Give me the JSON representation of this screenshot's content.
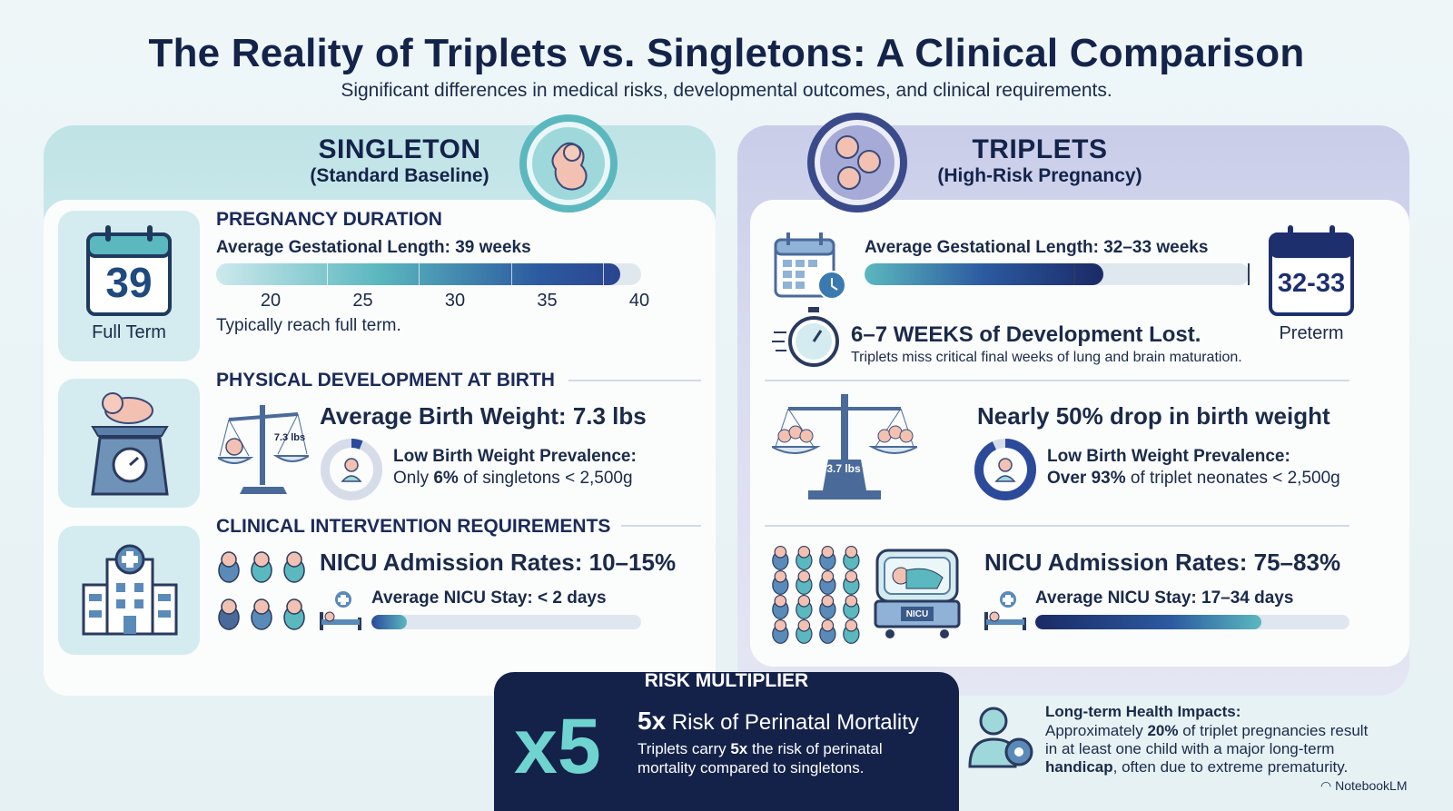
{
  "title": "The Reality of Triplets vs. Singletons: A Clinical Comparison",
  "subtitle": "Significant differences in medical risks, developmental outcomes, and clinical requirements.",
  "singleton": {
    "heading": "SINGLETON",
    "subheading": "(Standard Baseline)",
    "duration": {
      "section_title": "PREGNANCY DURATION",
      "calendar_number": "39",
      "calendar_label": "Full Term",
      "avg_label": "Average Gestational Length: 39 weeks",
      "ticks": [
        "20",
        "25",
        "30",
        "35",
        "40"
      ],
      "bar_fraction": 0.95,
      "note": "Typically reach full term."
    },
    "physical": {
      "section_title": "PHYSICAL DEVELOPMENT AT BIRTH",
      "weight_badge": "7.3 lbs",
      "weight_label": "Average Birth Weight: 7.3 lbs",
      "lbw_title": "Low Birth Weight Prevalence:",
      "lbw_prefix": "Only ",
      "lbw_value": "6%",
      "lbw_suffix": " of singletons < 2,500g",
      "lbw_fraction": 0.06
    },
    "clinical": {
      "section_title": "CLINICAL INTERVENTION REQUIREMENTS",
      "nicu_label": "NICU Admission Rates: 10–15%",
      "stay_label": "Average NICU Stay: < 2 days",
      "stay_fraction": 0.13
    }
  },
  "triplets": {
    "heading": "TRIPLETS",
    "subheading": "(High-Risk Pregnancy)",
    "duration": {
      "avg_label": "Average Gestational Length: 32–33 weeks",
      "bar_fraction": 0.62,
      "calendar_number": "32-33",
      "calendar_label": "Preterm",
      "weeks_lost": "6–7 WEEKS of Development Lost.",
      "weeks_note": "Triplets miss critical final weeks of lung and brain maturation."
    },
    "physical": {
      "weight_badge": "3.7 lbs",
      "weight_label": "Nearly 50% drop in birth weight",
      "lbw_title": "Low Birth Weight Prevalence:",
      "lbw_value": "Over 93%",
      "lbw_suffix": " of triplet neonates < 2,500g",
      "lbw_fraction": 0.93
    },
    "clinical": {
      "nicu_label": "NICU Admission Rates: 75–83%",
      "stay_label": "Average NICU Stay: 17–34 days",
      "stay_fraction": 0.72,
      "incubator_label": "NICU"
    }
  },
  "risk": {
    "heading": "RISK MULTIPLIER",
    "big": "x5",
    "line_bold": "5x",
    "line_rest": " Risk of Perinatal Mortality",
    "note_prefix": "Triplets carry ",
    "note_bold": "5x",
    "note_suffix": " the risk of perinatal mortality compared to singletons."
  },
  "longterm": {
    "title": "Long-term Health Impacts:",
    "p1": "Approximately ",
    "b1": "20%",
    "p2": " of triplet pregnancies result in at least one child with a major long-term ",
    "b2": "handicap",
    "p3": ", often due to extreme prematurity."
  },
  "brand": "NotebookLM",
  "colors": {
    "teal": "#5bb8bf",
    "navy": "#1e2f6e",
    "dark": "#14224a",
    "accent": "#6fd4cf"
  }
}
